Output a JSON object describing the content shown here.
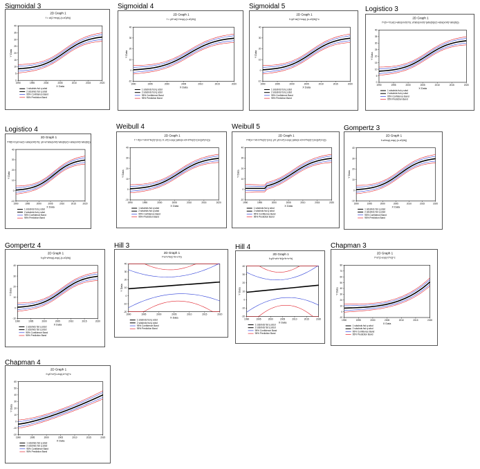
{
  "series_colors": {
    "fit": "#000000",
    "confidence": "#2c3ed8",
    "prediction": "#e0202a"
  },
  "legend": [
    "1 sdsdnds fsd q sdsd",
    "2 sdsdnds fsd q sdsd",
    "95% Confidence Band",
    "95% Prediction Band"
  ],
  "panels": [
    {
      "label": "Sigmoidal 3",
      "graph_title": "2D Graph 1",
      "equation": "f = a/(1+exp(-(x-x0)/b))",
      "xlabel": "X Data",
      "ylabel": "Y Data",
      "chart_data": {
        "type": "line",
        "x": [
          1990,
          2020
        ],
        "ylim": [
          0,
          40
        ],
        "xticks": [
          "1990",
          "1995",
          "2000",
          "2005",
          "2010",
          "2015",
          "2020"
        ],
        "yticks": [
          "0",
          "5",
          "10",
          "15",
          "20",
          "25",
          "30",
          "35",
          "40"
        ]
      }
    },
    {
      "label": "Sigmoidal 4",
      "graph_title": "2D Graph 1",
      "equation": "f = y0+a/(1+exp(-(x-x0)/b))",
      "xlabel": "X Data",
      "ylabel": "Y Data",
      "chart_data": {
        "type": "line",
        "x": [
          1990,
          2020
        ],
        "ylim": [
          -10,
          40
        ],
        "xticks": [
          "1990",
          "1995",
          "2000",
          "2005",
          "2010",
          "2015",
          "2020"
        ],
        "yticks": [
          "-10",
          "0",
          "10",
          "20",
          "30",
          "40"
        ]
      }
    },
    {
      "label": "Sigmoidal 5",
      "graph_title": "2D Graph 1",
      "equation": "f=y0+a/(1+exp(-(x-x0)/b))^c",
      "xlabel": "X Data",
      "ylabel": "Y Data",
      "chart_data": {
        "type": "line",
        "x": [
          1990,
          2020
        ],
        "ylim": [
          -10,
          40
        ],
        "xticks": [
          "1990",
          "1995",
          "2000",
          "2005",
          "2010",
          "2015",
          "2020"
        ],
        "yticks": [
          "-10",
          "0",
          "10",
          "20",
          "30",
          "40"
        ]
      }
    },
    {
      "label": "Logistico 3",
      "graph_title": "2D Graph 1",
      "equation": "f=(b>=0;a/(1+abs(x/x0)^b); a*abs(x/x0)^(abs(b))/(1+abs(x/x0)^abs(b)))",
      "xlabel": "X Data",
      "ylabel": "Y Data",
      "chart_data": {
        "type": "line",
        "x": [
          1990,
          2020
        ],
        "ylim": [
          0,
          40
        ],
        "xticks": [
          "1990",
          "1995",
          "2000",
          "2005",
          "2010",
          "2015",
          "2020"
        ],
        "yticks": [
          "0",
          "5",
          "10",
          "15",
          "20",
          "25",
          "30",
          "35",
          "40"
        ]
      }
    },
    {
      "label": "Logistico 4",
      "graph_title": "2D Graph 1",
      "equation": "f=if(b>0;y0+a/(1+abs(x/x0)^b); y0+a*abs(x/x0)^abs(b)/(1+abs(x/x0)^abs(b)))",
      "xlabel": "X Data",
      "ylabel": "Y Data",
      "chart_data": {
        "type": "line",
        "x": [
          1990,
          2020
        ],
        "ylim": [
          -10,
          40
        ],
        "xticks": [
          "1990",
          "1995",
          "2000",
          "2005",
          "2010",
          "2015",
          "2020"
        ],
        "yticks": [
          "-10",
          "0",
          "10",
          "20",
          "30",
          "40"
        ]
      }
    },
    {
      "label": "Weibull 4",
      "graph_title": "2D Graph 1",
      "equation": "f = if(x<=x0-b*ln(2)^(1/c); 0; a*(1-exp(-(abs(x-x0+b*ln(2)^(1/c))/b)^c)))",
      "xlabel": "X Data",
      "ylabel": "Y Data",
      "chart_data": {
        "type": "line",
        "x": [
          1990,
          2020
        ],
        "ylim": [
          -10,
          40
        ],
        "xticks": [
          "1990",
          "1995",
          "2000",
          "2005",
          "2010",
          "2015",
          "2020"
        ],
        "yticks": [
          "-10",
          "0",
          "10",
          "20",
          "30",
          "40"
        ]
      }
    },
    {
      "label": "Weibull 5",
      "graph_title": "2D Graph 1",
      "equation": "f=if(x<=x0-b*ln(2)^(1/c); y0; y0+a*(1-exp(-(abs(x-x0+b*ln(2)^(1/c))/b)^c)))",
      "xlabel": "X Data",
      "ylabel": "Y Data",
      "chart_data": {
        "type": "line",
        "x": [
          1990,
          2020
        ],
        "ylim": [
          -10,
          40
        ],
        "xticks": [
          "1990",
          "1995",
          "2000",
          "2005",
          "2010",
          "2015",
          "2020"
        ],
        "yticks": [
          "-10",
          "0",
          "10",
          "20",
          "30",
          "40"
        ]
      }
    },
    {
      "label": "Gompertz 3",
      "graph_title": "2D Graph 1",
      "equation": "f=a*exp(-exp(-(x-x0)/b))",
      "xlabel": "X Data",
      "ylabel": "Y Data",
      "chart_data": {
        "type": "line",
        "x": [
          1990,
          2020
        ],
        "ylim": [
          -10,
          40
        ],
        "xticks": [
          "1990",
          "1995",
          "2000",
          "2005",
          "2010",
          "2015",
          "2020"
        ],
        "yticks": [
          "-10",
          "0",
          "10",
          "20",
          "30",
          "40"
        ]
      }
    },
    {
      "label": "Gompertz 4",
      "graph_title": "2D Graph 1",
      "equation": "f=y0+a*exp(-exp(-(x-x0)/b))",
      "xlabel": "X Data",
      "ylabel": "Y Data",
      "chart_data": {
        "type": "line",
        "x": [
          1990,
          2020
        ],
        "ylim": [
          -10,
          40
        ],
        "xticks": [
          "1990",
          "1995",
          "2000",
          "2005",
          "2010",
          "2015",
          "2020"
        ],
        "yticks": [
          "-10",
          "0",
          "10",
          "20",
          "30",
          "40"
        ]
      }
    },
    {
      "label": "Hill 3",
      "graph_title": "2D Graph 1",
      "equation": "f=a*x^b/(c^b+x^b)",
      "xlabel": "X Data",
      "ylabel": "Y Data",
      "chart_data": {
        "type": "line",
        "x": [
          1990,
          2020
        ],
        "ylim": [
          -20,
          40
        ],
        "xticks": [
          "1990",
          "1995",
          "2000",
          "2005",
          "2010",
          "2015",
          "2020"
        ],
        "yticks": [
          "-20",
          "-10",
          "0",
          "10",
          "20",
          "30",
          "40"
        ]
      }
    },
    {
      "label": "Hill 4",
      "graph_title": "2D Graph 1",
      "equation": "f=y0+a*x^b/(c^b+x^b)",
      "xlabel": "X Data",
      "ylabel": "Y Data",
      "chart_data": {
        "type": "line",
        "x": [
          1990,
          2020
        ],
        "ylim": [
          -20,
          40
        ],
        "xticks": [
          "1990",
          "1995",
          "2000",
          "2005",
          "2010",
          "2015",
          "2020"
        ],
        "yticks": [
          "-20",
          "-10",
          "0",
          "10",
          "20",
          "30",
          "40"
        ]
      }
    },
    {
      "label": "Chapman 3",
      "graph_title": "2D Graph 1",
      "equation": "f=a*(1-exp(-b*x))^c",
      "xlabel": "X Data",
      "ylabel": "Y Data",
      "chart_data": {
        "type": "line",
        "x": [
          1990,
          2020
        ],
        "ylim": [
          -10,
          80
        ],
        "xticks": [
          "1990",
          "1995",
          "2000",
          "2005",
          "2010",
          "2015",
          "2020"
        ],
        "yticks": [
          "-10",
          "0",
          "10",
          "20",
          "30",
          "40",
          "50",
          "60",
          "70",
          "80"
        ]
      }
    },
    {
      "label": "Chapman 4",
      "graph_title": "2D Graph 1",
      "equation": "f=y0+a*(1-exp(-b*x))^c",
      "xlabel": "X Data",
      "ylabel": "Y Data",
      "chart_data": {
        "type": "line",
        "x": [
          1990,
          2020
        ],
        "ylim": [
          -20,
          60
        ],
        "xticks": [
          "1990",
          "1995",
          "2000",
          "2005",
          "2010",
          "2015",
          "2020"
        ],
        "yticks": [
          "-20",
          "-10",
          "0",
          "10",
          "20",
          "30",
          "40",
          "50",
          "60"
        ]
      }
    }
  ]
}
